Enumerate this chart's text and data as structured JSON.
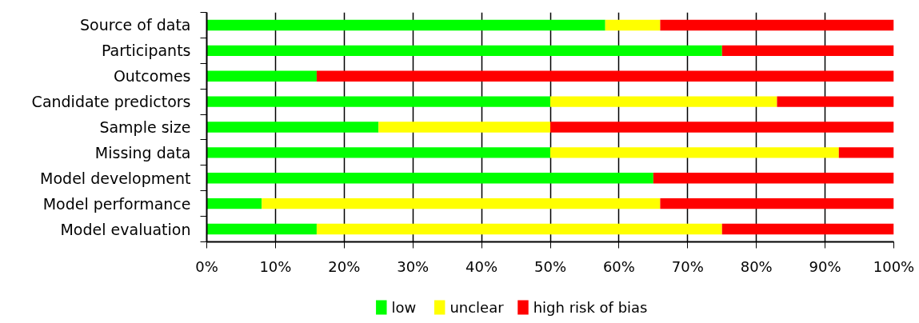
{
  "chart_data": {
    "type": "bar",
    "orientation": "horizontal",
    "stacked": true,
    "categories": [
      "Source of data",
      "Participants",
      "Outcomes",
      "Candidate predictors",
      "Sample size",
      "Missing data",
      "Model development",
      "Model performance",
      "Model evaluation"
    ],
    "series": [
      {
        "name": "low",
        "color": "#00ff00",
        "values": [
          58,
          75,
          16,
          50,
          25,
          50,
          65,
          8,
          16
        ]
      },
      {
        "name": "unclear",
        "color": "#ffff00",
        "values": [
          8,
          0,
          0,
          33,
          25,
          42,
          0,
          58,
          59
        ]
      },
      {
        "name": "high risk of bias",
        "color": "#ff0000",
        "values": [
          34,
          25,
          84,
          17,
          50,
          8,
          35,
          34,
          25
        ]
      }
    ],
    "xlim": [
      0,
      100
    ],
    "xticks": [
      {
        "value": 0,
        "label": "0%"
      },
      {
        "value": 10,
        "label": "10%"
      },
      {
        "value": 20,
        "label": "20%"
      },
      {
        "value": 30,
        "label": "30%"
      },
      {
        "value": 40,
        "label": "40%"
      },
      {
        "value": 50,
        "label": "50%"
      },
      {
        "value": 60,
        "label": "60%"
      },
      {
        "value": 70,
        "label": "70%"
      },
      {
        "value": 80,
        "label": "80%"
      },
      {
        "value": 90,
        "label": "90%"
      },
      {
        "value": 100,
        "label": "100%"
      }
    ],
    "grid": "x",
    "legend": "bottom"
  }
}
